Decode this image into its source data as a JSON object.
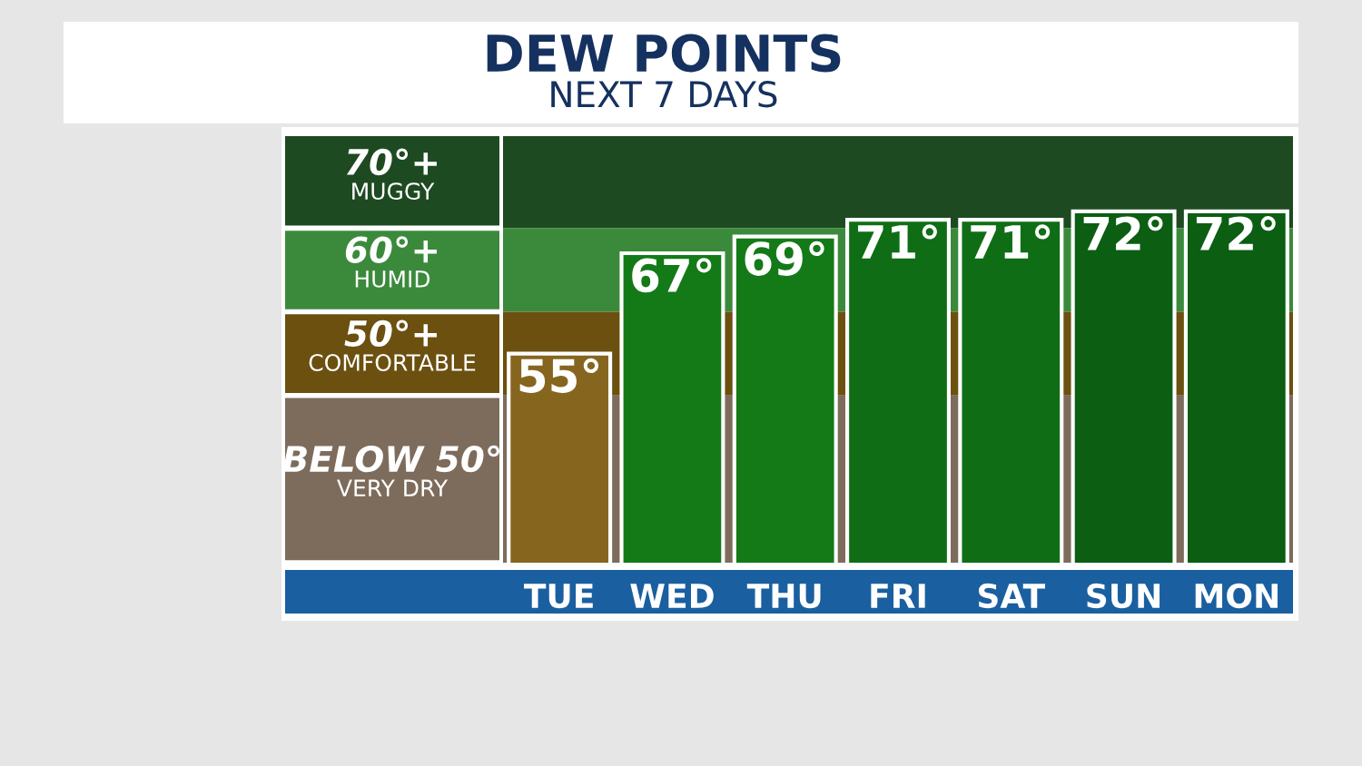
{
  "chart_data": {
    "type": "bar",
    "title": "DEW POINTS",
    "subtitle": "NEXT 7 DAYS",
    "categories": [
      "TUE",
      "WED",
      "THU",
      "FRI",
      "SAT",
      "SUN",
      "MON"
    ],
    "values": [
      55,
      67,
      69,
      71,
      71,
      72,
      72
    ],
    "value_labels": [
      "55°",
      "67°",
      "69°",
      "71°",
      "71°",
      "72°",
      "72°"
    ],
    "colors": [
      "#86661f",
      "#137a17",
      "#137a17",
      "#0f6e15",
      "#0f6e15",
      "#0b5e12",
      "#0b5e12"
    ],
    "ylim": [
      30,
      81
    ],
    "bands": [
      {
        "axis": "y",
        "from": 70,
        "to": 81,
        "label": "70°+\nMUGGY",
        "color": "#1e4a22"
      },
      {
        "axis": "y",
        "from": 60,
        "to": 70,
        "label": "60°+\nHUMID",
        "color": "#3b8a3c"
      },
      {
        "axis": "y",
        "from": 50,
        "to": 60,
        "label": "50°+\nCOMFORTABLE",
        "color": "#6b5010"
      },
      {
        "axis": "y",
        "from": 30,
        "to": 50,
        "label": "BELOW 50°\nVERY DRY",
        "color": "#7d6c5c"
      }
    ],
    "legend": false,
    "grid": false
  }
}
